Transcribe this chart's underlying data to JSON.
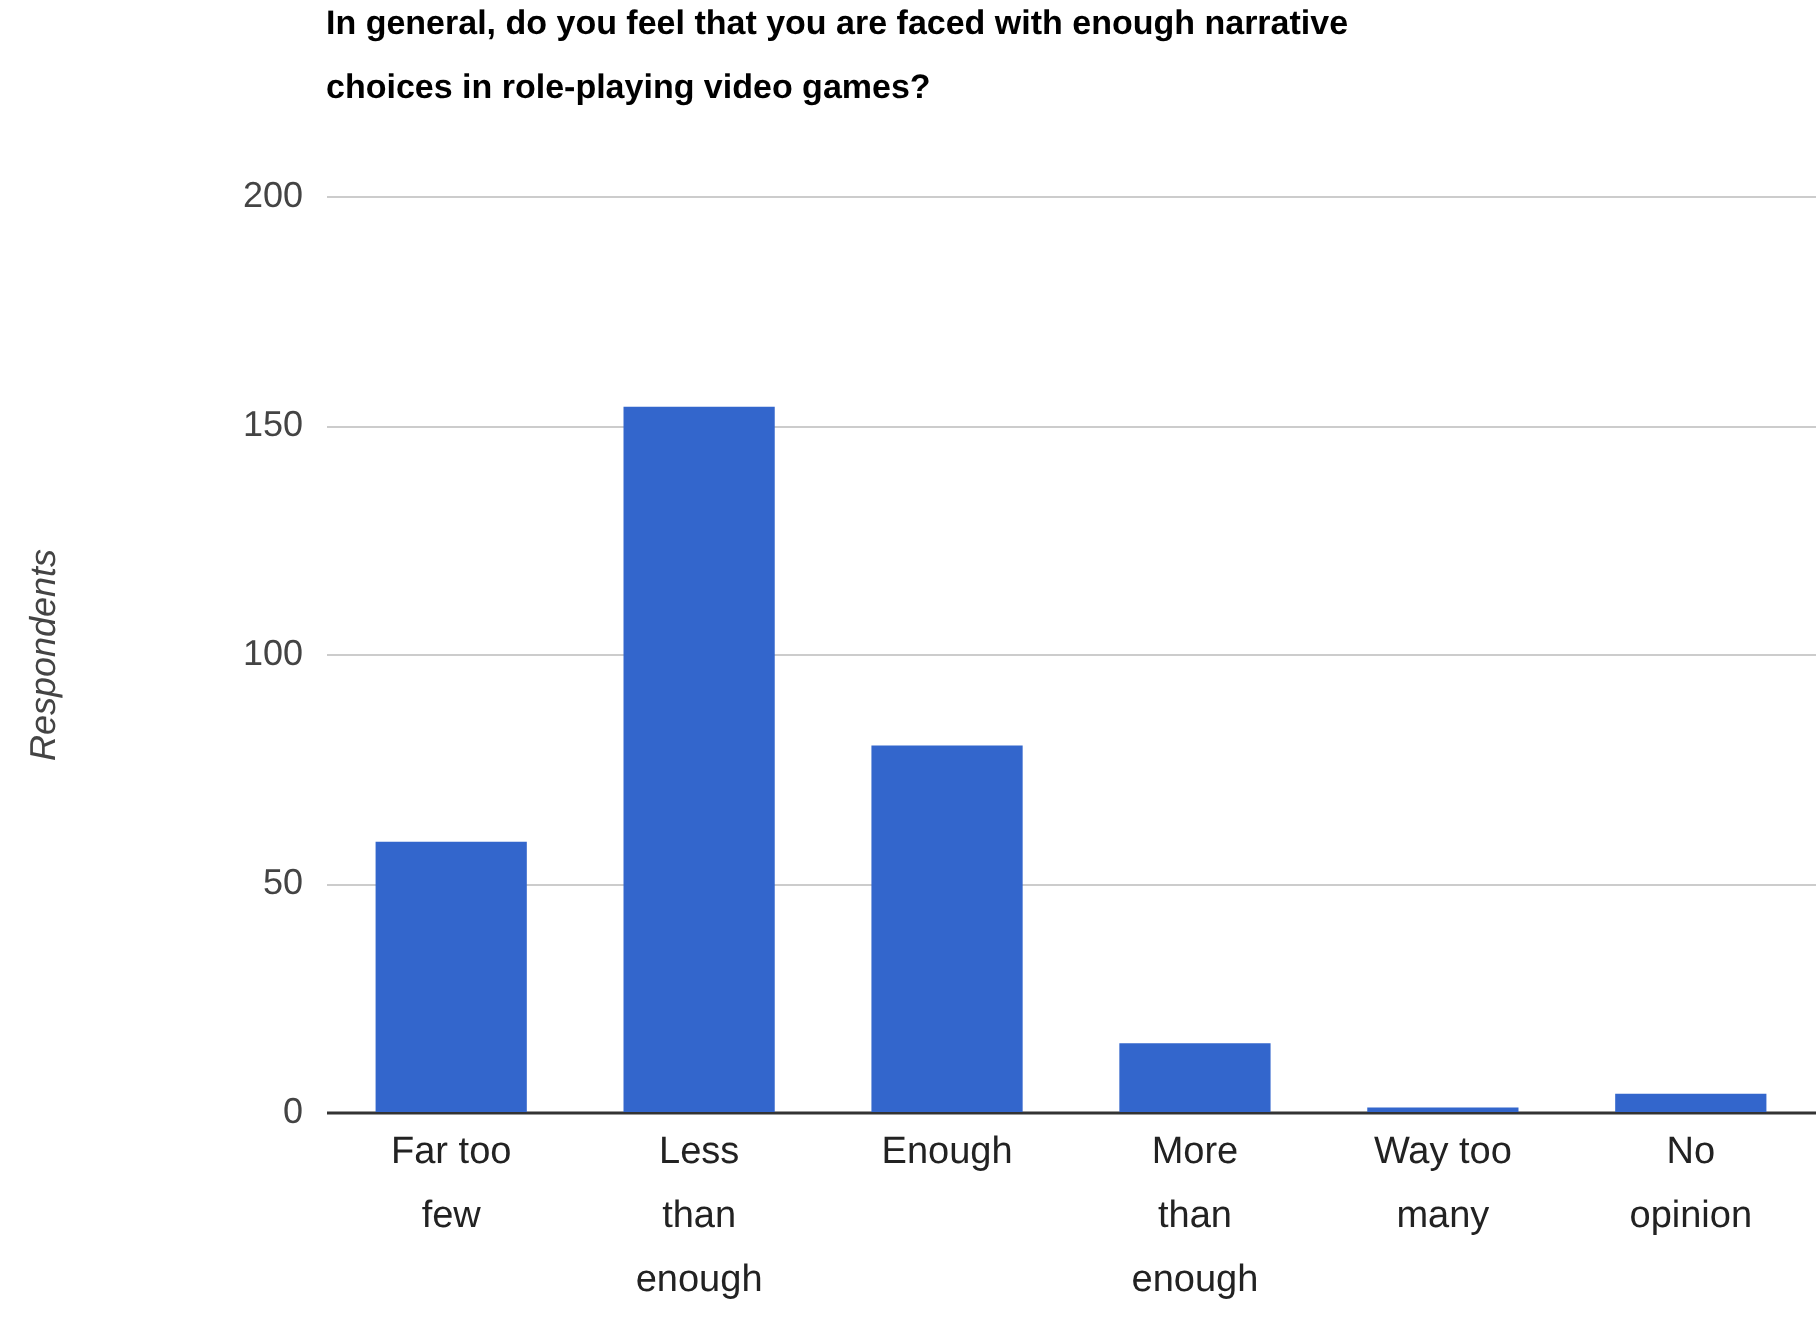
{
  "chart_data": {
    "type": "bar",
    "title": "In general, do you feel that you are faced with enough narrative choices in role-playing video games?",
    "ylabel": "Respondents",
    "categories": [
      "Far too few",
      "Less than enough",
      "Enough",
      "More than enough",
      "Way too many",
      "No opinion"
    ],
    "values": [
      59,
      154,
      80,
      15,
      1,
      4
    ],
    "color": "#3366cc",
    "ylim": [
      0,
      200
    ],
    "yticks": [
      0,
      50,
      100,
      150,
      200
    ],
    "grid": "y"
  }
}
